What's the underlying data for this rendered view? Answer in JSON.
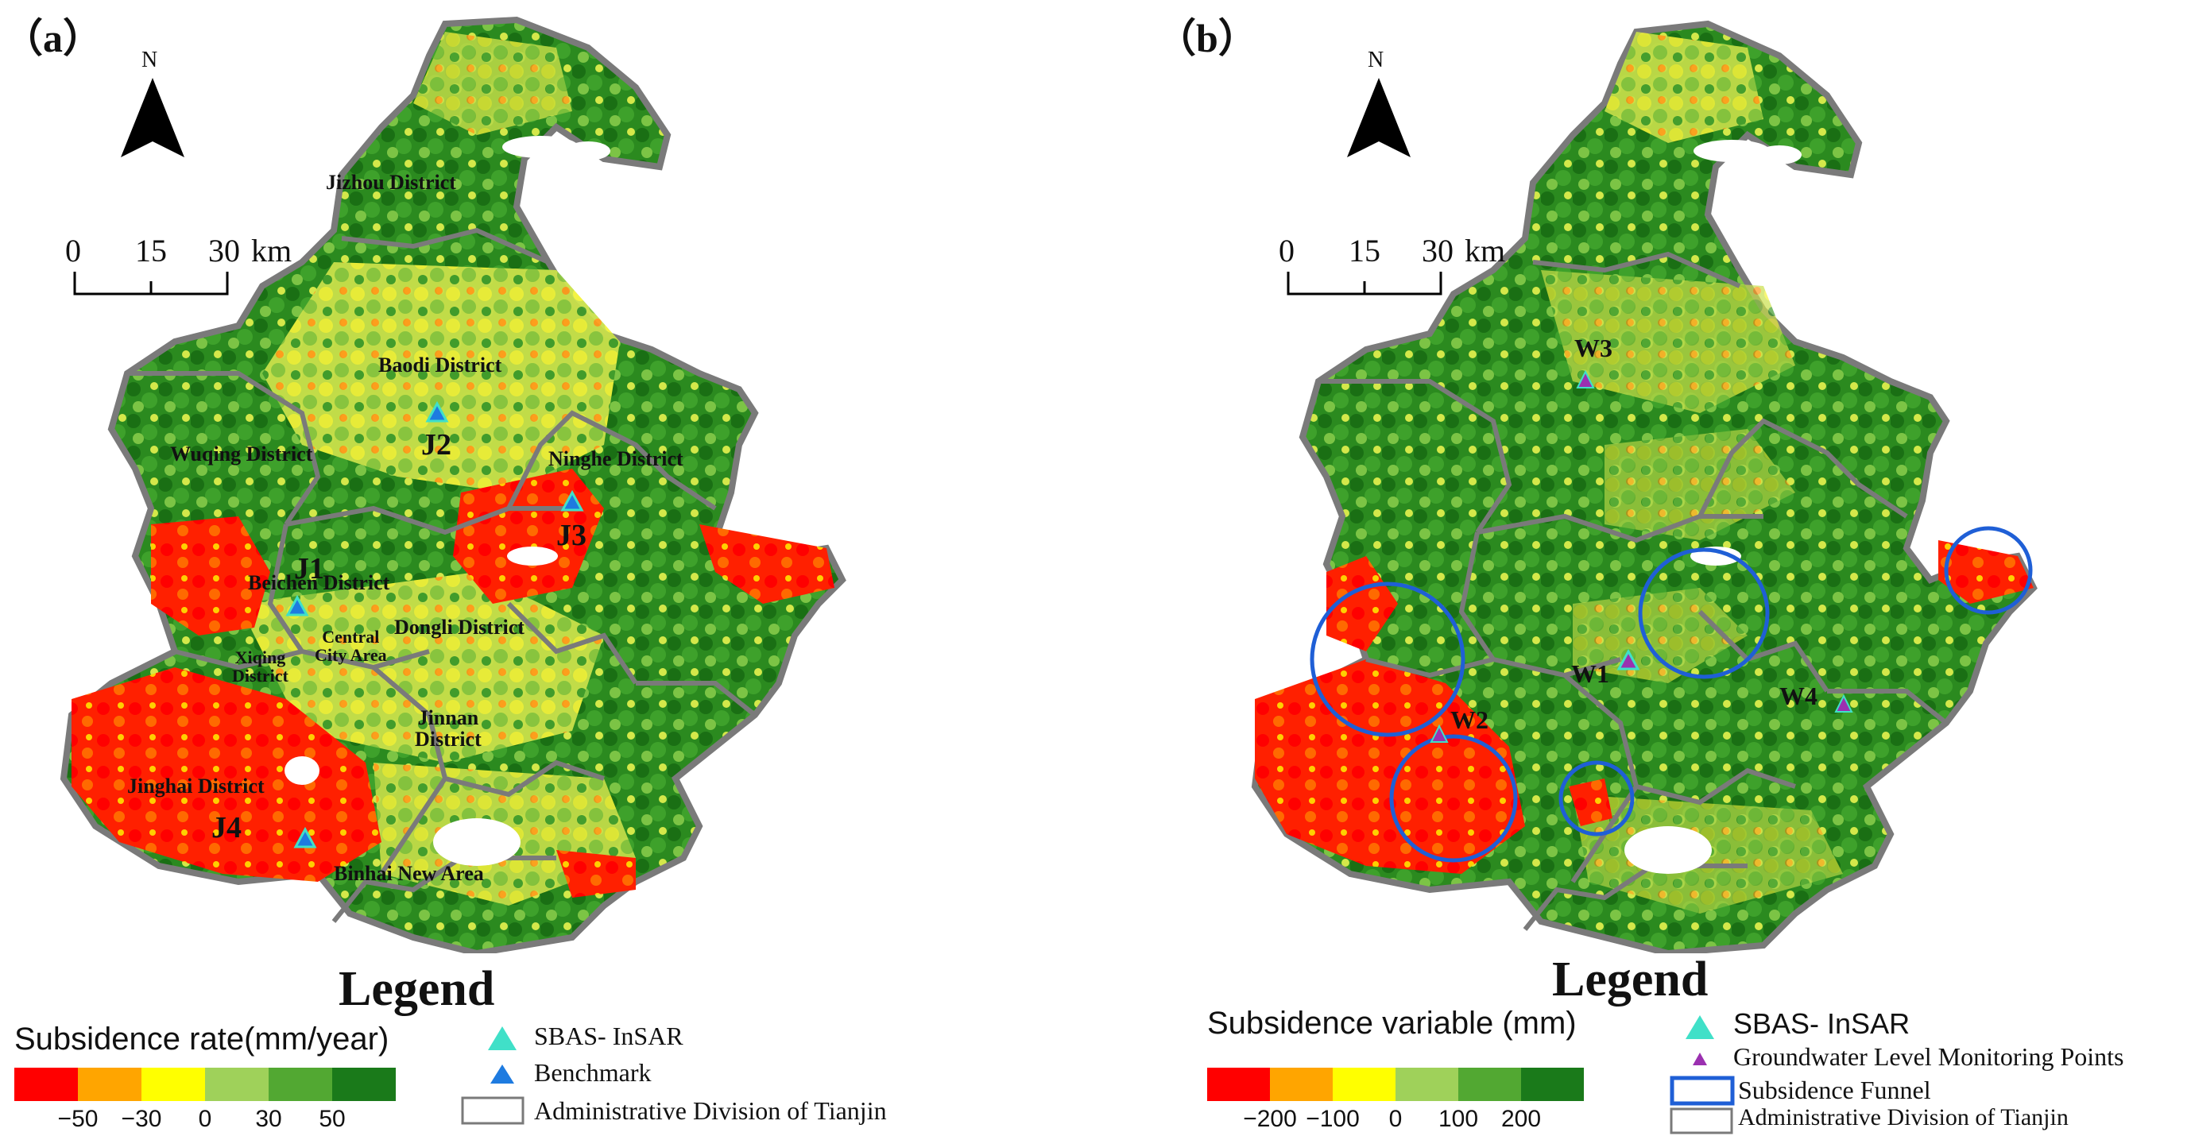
{
  "panels": {
    "a": {
      "label": "（a）",
      "north": "N",
      "scale": {
        "t0": "0",
        "t1": "15",
        "t2": "30",
        "unit": "km"
      },
      "districts": {
        "jizhou": "Jizhou District",
        "baodi": "Baodi District",
        "wuqing": "Wuqing District",
        "ninghe": "Ninghe  District",
        "beichen": "Beichen District",
        "dongli": "Dongli  District",
        "central": "Central\nCity Area",
        "xiqing": "Xiqing\nDistrict",
        "jinnan": "Jinnan\nDistrict",
        "jinghai": "Jinghai  District",
        "binhai": "Binhai  New  Area"
      },
      "benchmarks": {
        "j1": "J1",
        "j2": "J2",
        "j3": "J3",
        "j4": "J4"
      },
      "legend": {
        "title": "Legend",
        "ramp_title": "Subsidence  rate(mm/year)",
        "ticks": [
          "−50",
          "−30",
          "0",
          "30",
          "50"
        ],
        "items": {
          "sbas": "SBAS- InSAR",
          "benchmark": "Benchmark",
          "admin": "Administrative Division of Tianjin"
        }
      }
    },
    "b": {
      "label": "（b）",
      "north": "N",
      "scale": {
        "t0": "0",
        "t1": "15",
        "t2": "30",
        "unit": "km"
      },
      "wells": {
        "w1": "W1",
        "w2": "W2",
        "w3": "W3",
        "w4": "W4"
      },
      "legend": {
        "title": "Legend",
        "ramp_title": "Subsidence variable (mm)",
        "ticks": [
          "−200",
          "−100",
          "0",
          "100",
          "200"
        ],
        "items": {
          "sbas": "SBAS- InSAR",
          "gw": "Groundwater Level Monitoring Points",
          "funnel": "Subsidence  Funnel",
          "admin": "Administrative Division of Tianjin"
        }
      }
    }
  },
  "colors": {
    "ramp": [
      "#ff0000",
      "#ffa500",
      "#ffff00",
      "#9fd15a",
      "#52a832",
      "#1a7a1a"
    ],
    "boundary": "#7a7a7a",
    "sbas": "#40e0c8",
    "benchmark": "#1e7be0",
    "gw": "#9b30b0",
    "funnel": "#1f5fd6"
  }
}
